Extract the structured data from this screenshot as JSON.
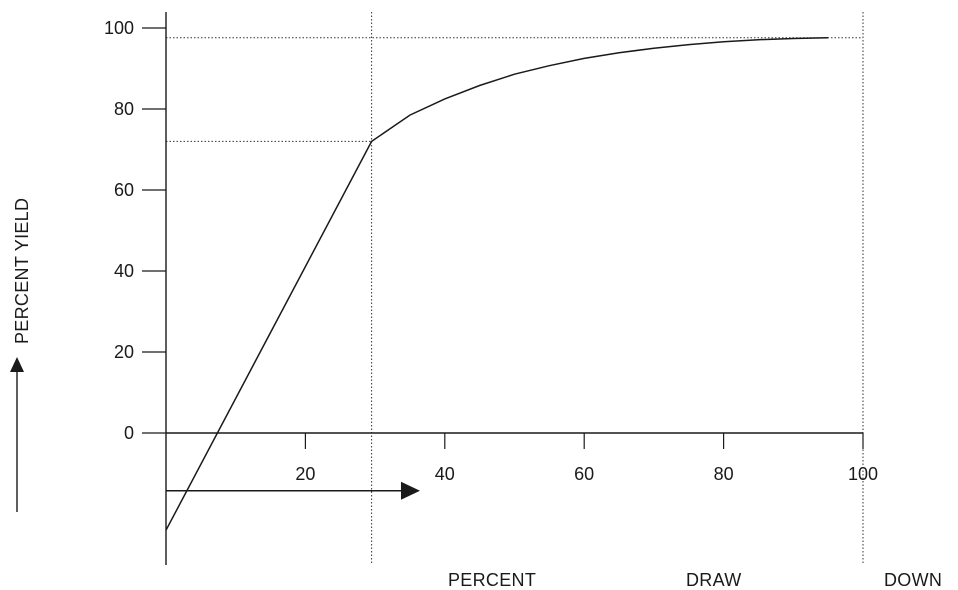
{
  "chart_data": {
    "type": "line",
    "xlabel_words": [
      "PERCENT",
      "DRAW",
      "DOWN"
    ],
    "ylabel": "PERCENT YIELD",
    "xlim": [
      0,
      100
    ],
    "ylim": [
      -25,
      105
    ],
    "x_ticks": [
      20,
      40,
      60,
      80,
      100
    ],
    "y_ticks": [
      0,
      20,
      40,
      60,
      80,
      100
    ],
    "grid": false,
    "series": [
      {
        "x": [
          0,
          29.5,
          35,
          40,
          45,
          50,
          55,
          60,
          65,
          70,
          75,
          80,
          85,
          90,
          95
        ],
        "y": [
          -24,
          72,
          78.5,
          82.5,
          85.8,
          88.6,
          90.7,
          92.5,
          93.9,
          95,
          95.9,
          96.6,
          97.1,
          97.4,
          97.6
        ]
      }
    ],
    "reference_lines": [
      {
        "x": 29.5,
        "y": 72
      },
      {
        "x": 100,
        "y": 97.6
      }
    ],
    "annotations": {
      "x_arrow": {
        "from": 0,
        "to": 34,
        "y": -15
      }
    }
  }
}
